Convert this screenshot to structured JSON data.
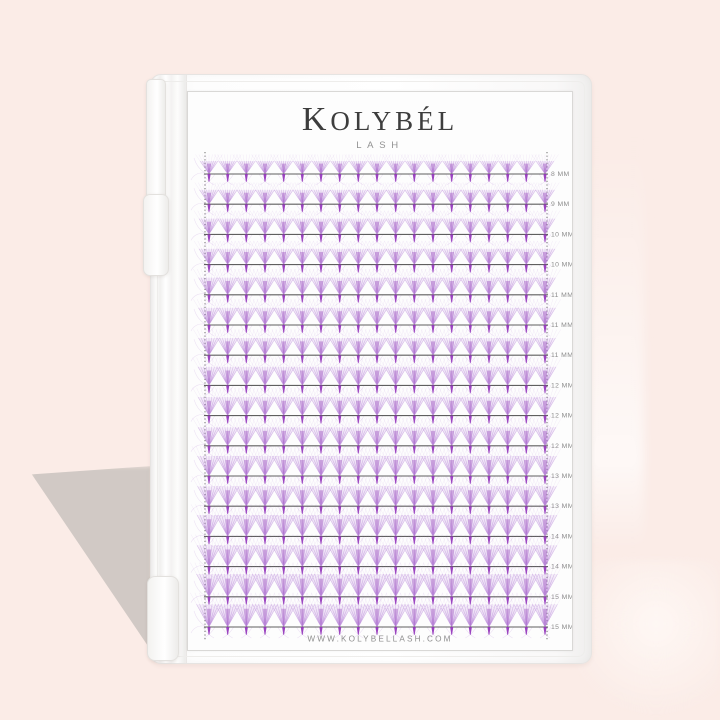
{
  "product": {
    "brand": "KOLYBÉL",
    "brand_sub": "LASH",
    "website": "WWW.KOLYBELLASH.COM"
  },
  "tray": {
    "rows": [
      {
        "label": "8 MM",
        "mm": 8
      },
      {
        "label": "9 MM",
        "mm": 9
      },
      {
        "label": "10 MM",
        "mm": 10
      },
      {
        "label": "10 MM",
        "mm": 10
      },
      {
        "label": "11 MM",
        "mm": 11
      },
      {
        "label": "11 MM",
        "mm": 11
      },
      {
        "label": "11 MM",
        "mm": 11
      },
      {
        "label": "12 MM",
        "mm": 12
      },
      {
        "label": "12 MM",
        "mm": 12
      },
      {
        "label": "12 MM",
        "mm": 12
      },
      {
        "label": "13 MM",
        "mm": 13
      },
      {
        "label": "13 MM",
        "mm": 13
      },
      {
        "label": "14 MM",
        "mm": 14
      },
      {
        "label": "14 MM",
        "mm": 14
      },
      {
        "label": "15 MM",
        "mm": 15
      },
      {
        "label": "15 MM",
        "mm": 15
      }
    ],
    "fans_per_row": 19,
    "colors": {
      "lash_light": "#d4b8e8",
      "lash_mid": "#a868d0",
      "lash_dark": "#9233bb",
      "strip_line": "#5f5f5f",
      "dotted_line": "#4a4a4a",
      "label_text": "#8c8c8c"
    }
  },
  "scene": {
    "background": "#fbece7",
    "shadow": "#cfc8c3",
    "case_color": "#ffffff"
  }
}
